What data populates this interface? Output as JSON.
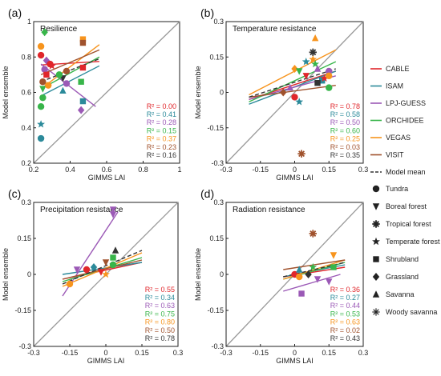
{
  "chart_data": [
    {
      "type": "scatter",
      "panel_label": "(a)",
      "title": "Resilience",
      "xlabel": "GIMMS LAI",
      "ylabel": "Model ensemble",
      "xlim": [
        0.2,
        1.0
      ],
      "ylim": [
        0.2,
        1.0
      ],
      "xticks": [
        "0.2",
        "0.4",
        "0.6",
        "0.8",
        "1"
      ],
      "yticks": [
        "0.2",
        "0.4",
        "0.6",
        "0.8",
        "1"
      ],
      "r2": [
        {
          "model": "CABLE",
          "label": "R² = 0.00"
        },
        {
          "model": "ISAM",
          "label": "R² = 0.41"
        },
        {
          "model": "LPJ-GUESS",
          "label": "R² = 0.28"
        },
        {
          "model": "ORCHIDEE",
          "label": "R² = 0.15"
        },
        {
          "model": "VEGAS",
          "label": "R² = 0.37"
        },
        {
          "model": "VISIT",
          "label": "R² = 0.23"
        },
        {
          "model": "Model mean",
          "label": "R² = 0.16"
        }
      ],
      "fit_lines": [
        {
          "model": "CABLE",
          "x": [
            0.24,
            0.56
          ],
          "y": [
            0.755,
            0.775
          ]
        },
        {
          "model": "ISAM",
          "x": [
            0.24,
            0.56
          ],
          "y": [
            0.58,
            0.75
          ]
        },
        {
          "model": "LPJ-GUESS",
          "x": [
            0.24,
            0.54
          ],
          "y": [
            0.76,
            0.52
          ]
        },
        {
          "model": "ORCHIDEE",
          "x": [
            0.24,
            0.56
          ],
          "y": [
            0.62,
            0.8
          ]
        },
        {
          "model": "VEGAS",
          "x": [
            0.24,
            0.56
          ],
          "y": [
            0.62,
            0.87
          ]
        },
        {
          "model": "VISIT",
          "x": [
            0.24,
            0.56
          ],
          "y": [
            0.7,
            0.84
          ]
        },
        {
          "model": "Model mean",
          "x": [
            0.24,
            0.56
          ],
          "y": [
            0.66,
            0.79
          ]
        }
      ],
      "points": [
        {
          "model": "VEGAS",
          "x": 0.24,
          "y": 0.86,
          "marker": "circle"
        },
        {
          "model": "CABLE",
          "x": 0.24,
          "y": 0.81,
          "marker": "circle"
        },
        {
          "model": "ISAM",
          "x": 0.24,
          "y": 0.34,
          "marker": "circle"
        },
        {
          "model": "ISAM",
          "x": 0.24,
          "y": 0.42,
          "marker": "star"
        },
        {
          "model": "ORCHIDEE",
          "x": 0.26,
          "y": 0.94,
          "marker": "diamond"
        },
        {
          "model": "ORCHIDEE",
          "x": 0.25,
          "y": 0.57,
          "marker": "circle"
        },
        {
          "model": "ORCHIDEE",
          "x": 0.24,
          "y": 0.52,
          "marker": "circle"
        },
        {
          "model": "ORCHIDEE",
          "x": 0.25,
          "y": 0.62,
          "marker": "triangle-down"
        },
        {
          "model": "LPJ-GUESS",
          "x": 0.27,
          "y": 0.78,
          "marker": "diamond"
        },
        {
          "model": "LPJ-GUESS",
          "x": 0.26,
          "y": 0.73,
          "marker": "circle"
        },
        {
          "model": "CABLE",
          "x": 0.27,
          "y": 0.7,
          "marker": "square"
        },
        {
          "model": "VISIT",
          "x": 0.25,
          "y": 0.66,
          "marker": "circle"
        },
        {
          "model": "CABLE",
          "x": 0.29,
          "y": 0.76,
          "marker": "circle"
        },
        {
          "model": "VEGAS",
          "x": 0.28,
          "y": 0.64,
          "marker": "circle"
        },
        {
          "model": "CABLE",
          "x": 0.3,
          "y": 0.75,
          "marker": "star"
        },
        {
          "model": "ISAM",
          "x": 0.36,
          "y": 0.61,
          "marker": "triangle"
        },
        {
          "model": "Model mean",
          "x": 0.36,
          "y": 0.68,
          "marker": "triangle-down"
        },
        {
          "model": "VISIT",
          "x": 0.38,
          "y": 0.72,
          "marker": "circle"
        },
        {
          "model": "LPJ-GUESS",
          "x": 0.38,
          "y": 0.65,
          "marker": "circle"
        },
        {
          "model": "ORCHIDEE",
          "x": 0.34,
          "y": 0.7,
          "marker": "circle"
        },
        {
          "model": "VEGAS",
          "x": 0.47,
          "y": 0.9,
          "marker": "square"
        },
        {
          "model": "VISIT",
          "x": 0.47,
          "y": 0.88,
          "marker": "square"
        },
        {
          "model": "CABLE",
          "x": 0.47,
          "y": 0.74,
          "marker": "square"
        },
        {
          "model": "ISAM",
          "x": 0.47,
          "y": 0.55,
          "marker": "square"
        },
        {
          "model": "LPJ-GUESS",
          "x": 0.46,
          "y": 0.5,
          "marker": "diamond"
        },
        {
          "model": "ORCHIDEE",
          "x": 0.46,
          "y": 0.66,
          "marker": "square"
        }
      ]
    },
    {
      "type": "scatter",
      "panel_label": "(b)",
      "title": "Temperature resistance",
      "xlabel": "GIMMS LAI",
      "ylabel": "Model ensemble",
      "xlim": [
        -0.3,
        0.3
      ],
      "ylim": [
        -0.3,
        0.3
      ],
      "xticks": [
        "-0.3",
        "-0.15",
        "0",
        "0.15",
        "0.3"
      ],
      "yticks": [
        "-0.3",
        "-0.15",
        "0",
        "0.15",
        "0.3"
      ],
      "r2": [
        {
          "model": "CABLE",
          "label": "R² = 0.78"
        },
        {
          "model": "ISAM",
          "label": "R² = 0.58"
        },
        {
          "model": "LPJ-GUESS",
          "label": "R² = 0.50"
        },
        {
          "model": "ORCHIDEE",
          "label": "R² = 0.60"
        },
        {
          "model": "VEGAS",
          "label": "R² = 0.25"
        },
        {
          "model": "VISIT",
          "label": "R² = 0.03"
        },
        {
          "model": "Model mean",
          "label": "R² = 0.35"
        }
      ],
      "fit_lines": [
        {
          "model": "CABLE",
          "x": [
            -0.2,
            0.18
          ],
          "y": [
            -0.03,
            0.09
          ]
        },
        {
          "model": "ISAM",
          "x": [
            -0.2,
            0.18
          ],
          "y": [
            -0.05,
            0.09
          ]
        },
        {
          "model": "LPJ-GUESS",
          "x": [
            -0.2,
            0.18
          ],
          "y": [
            -0.03,
            0.07
          ]
        },
        {
          "model": "ORCHIDEE",
          "x": [
            -0.2,
            0.18
          ],
          "y": [
            -0.04,
            0.13
          ]
        },
        {
          "model": "VEGAS",
          "x": [
            -0.2,
            0.18
          ],
          "y": [
            -0.01,
            0.18
          ]
        },
        {
          "model": "VISIT",
          "x": [
            -0.2,
            0.18
          ],
          "y": [
            -0.02,
            0.03
          ]
        },
        {
          "model": "Model mean",
          "x": [
            -0.2,
            0.18
          ],
          "y": [
            -0.02,
            0.1
          ]
        }
      ],
      "points": [
        {
          "model": "VEGAS",
          "x": 0.09,
          "y": 0.23,
          "marker": "triangle"
        },
        {
          "model": "Model mean",
          "x": 0.08,
          "y": 0.17,
          "marker": "asterisk"
        },
        {
          "model": "VEGAS",
          "x": 0.08,
          "y": 0.14,
          "marker": "star"
        },
        {
          "model": "ORCHIDEE",
          "x": 0.09,
          "y": 0.12,
          "marker": "star"
        },
        {
          "model": "ISAM",
          "x": 0.05,
          "y": 0.13,
          "marker": "star"
        },
        {
          "model": "VEGAS",
          "x": 0.0,
          "y": 0.1,
          "marker": "diamond"
        },
        {
          "model": "ORCHIDEE",
          "x": 0.02,
          "y": 0.09,
          "marker": "triangle-down"
        },
        {
          "model": "LPJ-GUESS",
          "x": 0.1,
          "y": 0.1,
          "marker": "triangle"
        },
        {
          "model": "VISIT",
          "x": 0.03,
          "y": -0.26,
          "marker": "asterisk"
        },
        {
          "model": "ISAM",
          "x": 0.02,
          "y": -0.04,
          "marker": "star"
        },
        {
          "model": "LPJ-GUESS",
          "x": 0.15,
          "y": 0.09,
          "marker": "circle"
        },
        {
          "model": "CABLE",
          "x": 0.0,
          "y": -0.02,
          "marker": "circle"
        },
        {
          "model": "VISIT",
          "x": -0.05,
          "y": 0.0,
          "marker": "diamond"
        },
        {
          "model": "CABLE",
          "x": 0.05,
          "y": 0.07,
          "marker": "triangle-down"
        },
        {
          "model": "ISAM",
          "x": 0.12,
          "y": 0.05,
          "marker": "square"
        },
        {
          "model": "Model mean",
          "x": 0.1,
          "y": 0.04,
          "marker": "square"
        },
        {
          "model": "ORCHIDEE",
          "x": 0.15,
          "y": 0.02,
          "marker": "circle"
        },
        {
          "model": "LPJ-GUESS",
          "x": -0.02,
          "y": 0.02,
          "marker": "triangle"
        },
        {
          "model": "CABLE",
          "x": 0.13,
          "y": 0.06,
          "marker": "star"
        },
        {
          "model": "VEGAS",
          "x": 0.15,
          "y": 0.07,
          "marker": "circle"
        }
      ]
    },
    {
      "type": "scatter",
      "panel_label": "(c)",
      "title": "Precipitation resistance",
      "xlabel": "GIMMS LAI",
      "ylabel": "Model ensemble",
      "xlim": [
        -0.3,
        0.3
      ],
      "ylim": [
        -0.3,
        0.3
      ],
      "xticks": [
        "-0.3",
        "-0.15",
        "0",
        "0.15",
        "0.3"
      ],
      "yticks": [
        "-0.3",
        "-0.15",
        "0",
        "0.15",
        "0.3"
      ],
      "r2": [
        {
          "model": "CABLE",
          "label": "R² = 0.55"
        },
        {
          "model": "ISAM",
          "label": "R² = 0.34"
        },
        {
          "model": "LPJ-GUESS",
          "label": "R² = 0.63"
        },
        {
          "model": "ORCHIDEE",
          "label": "R² = 0.75"
        },
        {
          "model": "VEGAS",
          "label": "R² = 0.80"
        },
        {
          "model": "VISIT",
          "label": "R² = 0.50"
        },
        {
          "model": "Model mean",
          "label": "R² = 0.78"
        }
      ],
      "fit_lines": [
        {
          "model": "CABLE",
          "x": [
            -0.18,
            0.15
          ],
          "y": [
            -0.02,
            0.05
          ]
        },
        {
          "model": "ISAM",
          "x": [
            -0.18,
            0.15
          ],
          "y": [
            0.0,
            0.05
          ]
        },
        {
          "model": "LPJ-GUESS",
          "x": [
            -0.18,
            0.05
          ],
          "y": [
            -0.09,
            0.26
          ]
        },
        {
          "model": "ORCHIDEE",
          "x": [
            -0.18,
            0.15
          ],
          "y": [
            -0.03,
            0.07
          ]
        },
        {
          "model": "VEGAS",
          "x": [
            -0.18,
            0.15
          ],
          "y": [
            -0.05,
            0.09
          ]
        },
        {
          "model": "VISIT",
          "x": [
            -0.18,
            0.15
          ],
          "y": [
            -0.02,
            0.06
          ]
        },
        {
          "model": "Model mean",
          "x": [
            -0.18,
            0.15
          ],
          "y": [
            -0.04,
            0.1
          ]
        }
      ],
      "points": [
        {
          "model": "LPJ-GUESS",
          "x": 0.03,
          "y": 0.27,
          "marker": "triangle-down"
        },
        {
          "model": "LPJ-GUESS",
          "x": 0.03,
          "y": 0.25,
          "marker": "triangle-down"
        },
        {
          "model": "LPJ-GUESS",
          "x": -0.12,
          "y": 0.02,
          "marker": "triangle-down"
        },
        {
          "model": "VEGAS",
          "x": -0.15,
          "y": -0.04,
          "marker": "circle"
        },
        {
          "model": "CABLE",
          "x": -0.08,
          "y": 0.02,
          "marker": "circle"
        },
        {
          "model": "ISAM",
          "x": -0.05,
          "y": 0.03,
          "marker": "diamond"
        },
        {
          "model": "VISIT",
          "x": 0.0,
          "y": 0.05,
          "marker": "triangle-down"
        },
        {
          "model": "ORCHIDEE",
          "x": 0.03,
          "y": 0.07,
          "marker": "square"
        },
        {
          "model": "Model mean",
          "x": 0.04,
          "y": 0.1,
          "marker": "triangle"
        },
        {
          "model": "CABLE",
          "x": -0.02,
          "y": 0.01,
          "marker": "triangle-down"
        },
        {
          "model": "ORCHIDEE",
          "x": 0.03,
          "y": 0.04,
          "marker": "circle"
        },
        {
          "model": "VEGAS",
          "x": 0.0,
          "y": 0.0,
          "marker": "star"
        }
      ]
    },
    {
      "type": "scatter",
      "panel_label": "(d)",
      "title": "Radiation resistance",
      "xlabel": "GIMMS LAI",
      "ylabel": "Model ensemble",
      "xlim": [
        -0.3,
        0.3
      ],
      "ylim": [
        -0.3,
        0.3
      ],
      "xticks": [
        "-0.3",
        "-0.15",
        "0",
        "0.15",
        "0.3"
      ],
      "yticks": [
        "-0.3",
        "-0.15",
        "0",
        "0.15",
        "0.3"
      ],
      "r2": [
        {
          "model": "CABLE",
          "label": "R² = 0.36"
        },
        {
          "model": "ISAM",
          "label": "R² = 0.27"
        },
        {
          "model": "LPJ-GUESS",
          "label": "R² = 0.44"
        },
        {
          "model": "ORCHIDEE",
          "label": "R² = 0.53"
        },
        {
          "model": "VEGAS",
          "label": "R² = 0.63"
        },
        {
          "model": "VISIT",
          "label": "R² = 0.02"
        },
        {
          "model": "Model mean",
          "label": "R² = 0.43"
        }
      ],
      "fit_lines": [
        {
          "model": "CABLE",
          "x": [
            -0.05,
            0.22
          ],
          "y": [
            -0.01,
            0.03
          ]
        },
        {
          "model": "ISAM",
          "x": [
            -0.05,
            0.22
          ],
          "y": [
            -0.01,
            0.04
          ]
        },
        {
          "model": "LPJ-GUESS",
          "x": [
            -0.05,
            0.2
          ],
          "y": [
            -0.07,
            0.0
          ]
        },
        {
          "model": "ORCHIDEE",
          "x": [
            -0.05,
            0.22
          ],
          "y": [
            -0.02,
            0.05
          ]
        },
        {
          "model": "VEGAS",
          "x": [
            -0.05,
            0.22
          ],
          "y": [
            -0.02,
            0.06
          ]
        },
        {
          "model": "VISIT",
          "x": [
            -0.05,
            0.22
          ],
          "y": [
            0.02,
            0.06
          ]
        },
        {
          "model": "Model mean",
          "x": [
            -0.05,
            0.22
          ],
          "y": [
            -0.01,
            0.05
          ]
        }
      ],
      "points": [
        {
          "model": "VISIT",
          "x": 0.08,
          "y": 0.17,
          "marker": "asterisk"
        },
        {
          "model": "VEGAS",
          "x": 0.17,
          "y": 0.08,
          "marker": "triangle-down"
        },
        {
          "model": "LPJ-GUESS",
          "x": 0.15,
          "y": -0.03,
          "marker": "triangle-down"
        },
        {
          "model": "LPJ-GUESS",
          "x": 0.1,
          "y": -0.02,
          "marker": "triangle-down"
        },
        {
          "model": "LPJ-GUESS",
          "x": 0.03,
          "y": -0.08,
          "marker": "square"
        },
        {
          "model": "CABLE",
          "x": 0.0,
          "y": 0.0,
          "marker": "circle"
        },
        {
          "model": "ISAM",
          "x": 0.02,
          "y": 0.02,
          "marker": "triangle"
        },
        {
          "model": "ORCHIDEE",
          "x": 0.08,
          "y": 0.03,
          "marker": "star"
        },
        {
          "model": "Model mean",
          "x": 0.06,
          "y": 0.0,
          "marker": "diamond"
        },
        {
          "model": "VEGAS",
          "x": 0.02,
          "y": -0.01,
          "marker": "circle"
        },
        {
          "model": "ORCHIDEE",
          "x": 0.17,
          "y": 0.03,
          "marker": "square"
        }
      ]
    }
  ],
  "legend": {
    "models": [
      {
        "name": "CABLE",
        "color": "#e0262b",
        "style": "solid"
      },
      {
        "name": "ISAM",
        "color": "#2b8a9a",
        "style": "solid"
      },
      {
        "name": "LPJ-GUESS",
        "color": "#9b59b6",
        "style": "solid"
      },
      {
        "name": "ORCHIDEE",
        "color": "#38b54a",
        "style": "solid"
      },
      {
        "name": "VEGAS",
        "color": "#f7941d",
        "style": "solid"
      },
      {
        "name": "VISIT",
        "color": "#a0522d",
        "style": "solid"
      },
      {
        "name": "Model mean",
        "color": "#333333",
        "style": "dashed"
      }
    ],
    "biomes": [
      {
        "name": "Tundra",
        "marker": "circle"
      },
      {
        "name": "Boreal forest",
        "marker": "triangle-down"
      },
      {
        "name": "Tropical forest",
        "marker": "asterisk"
      },
      {
        "name": "Temperate forest",
        "marker": "star"
      },
      {
        "name": "Shrubland",
        "marker": "square"
      },
      {
        "name": "Grassland",
        "marker": "diamond"
      },
      {
        "name": "Savanna",
        "marker": "triangle"
      },
      {
        "name": "Woody savanna",
        "marker": "asterisk-light"
      }
    ]
  }
}
